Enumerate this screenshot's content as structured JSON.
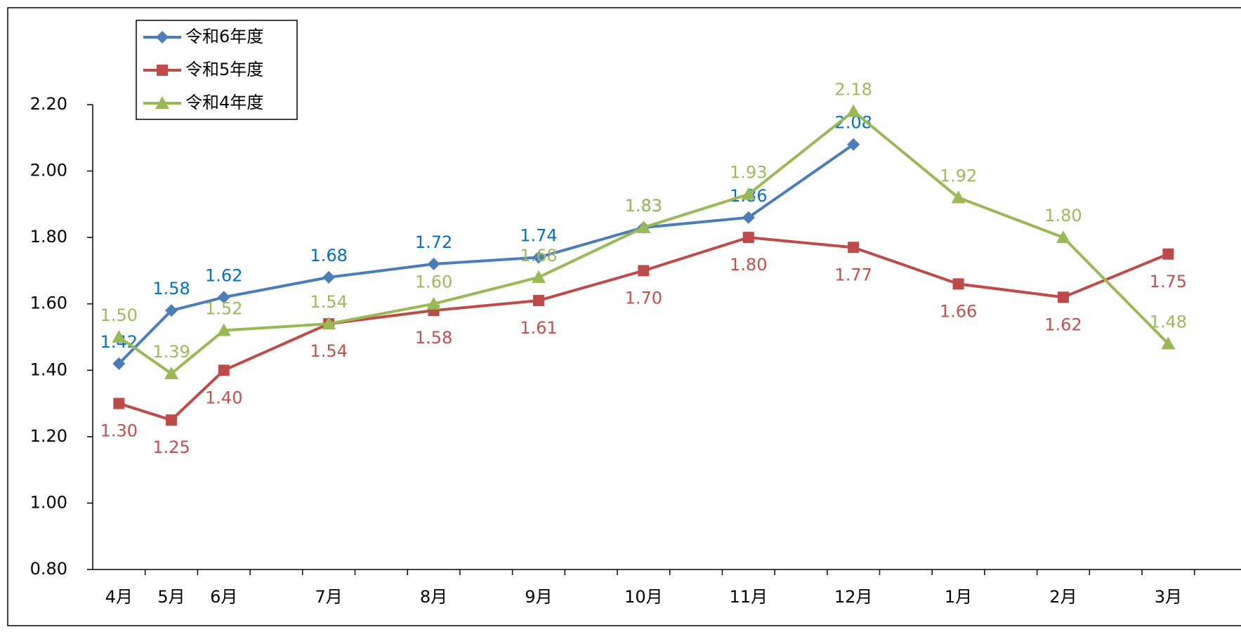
{
  "chart_data": {
    "type": "line",
    "categories": [
      "4月",
      "5月",
      "6月",
      "7月",
      "8月",
      "9月",
      "10月",
      "11月",
      "12月",
      "1月",
      "2月",
      "3月"
    ],
    "series": [
      {
        "name": "令和6年度",
        "color": "#4a7ebb",
        "label_color": "#0070c0",
        "values": [
          1.42,
          1.58,
          1.62,
          1.68,
          1.72,
          1.74,
          1.83,
          1.86,
          2.08,
          null,
          null,
          null
        ],
        "value_labels": [
          "1.42",
          "1.58",
          "1.62",
          "1.68",
          "1.72",
          "1.74",
          "1.83",
          "1.86",
          "2.08",
          null,
          null,
          null
        ]
      },
      {
        "name": "令和5年度",
        "color": "#be4b48",
        "label_color": "#c0504d",
        "values": [
          1.3,
          1.25,
          1.4,
          1.54,
          1.58,
          1.61,
          1.7,
          1.8,
          1.77,
          1.66,
          1.62,
          1.75
        ],
        "value_labels": [
          "1.30",
          "1.25",
          "1.40",
          "1.54",
          "1.58",
          "1.61",
          "1.70",
          "1.80",
          "1.77",
          "1.66",
          "1.62",
          "1.75"
        ]
      },
      {
        "name": "令和4年度",
        "color": "#98b954",
        "label_color": "#9bbb59",
        "values": [
          1.5,
          1.39,
          1.52,
          1.54,
          1.6,
          1.68,
          1.83,
          1.93,
          2.18,
          1.92,
          1.8,
          1.48
        ],
        "value_labels": [
          "1.50",
          "1.39",
          "1.52",
          "1.54",
          "1.60",
          "1.68",
          "1.83",
          "1.93",
          "2.18",
          "1.92",
          "1.80",
          "1.48"
        ]
      }
    ],
    "ylim": [
      0.8,
      2.2
    ],
    "yticks": [
      {
        "value": 0.8,
        "label": "0.80"
      },
      {
        "value": 1.0,
        "label": "1.00"
      },
      {
        "value": 1.2,
        "label": "1.20"
      },
      {
        "value": 1.4,
        "label": "1.40"
      },
      {
        "value": 1.6,
        "label": "1.60"
      },
      {
        "value": 1.8,
        "label": "1.80"
      },
      {
        "value": 2.0,
        "label": "2.00"
      },
      {
        "value": 2.2,
        "label": "2.20"
      }
    ],
    "legend": "upper-left"
  }
}
